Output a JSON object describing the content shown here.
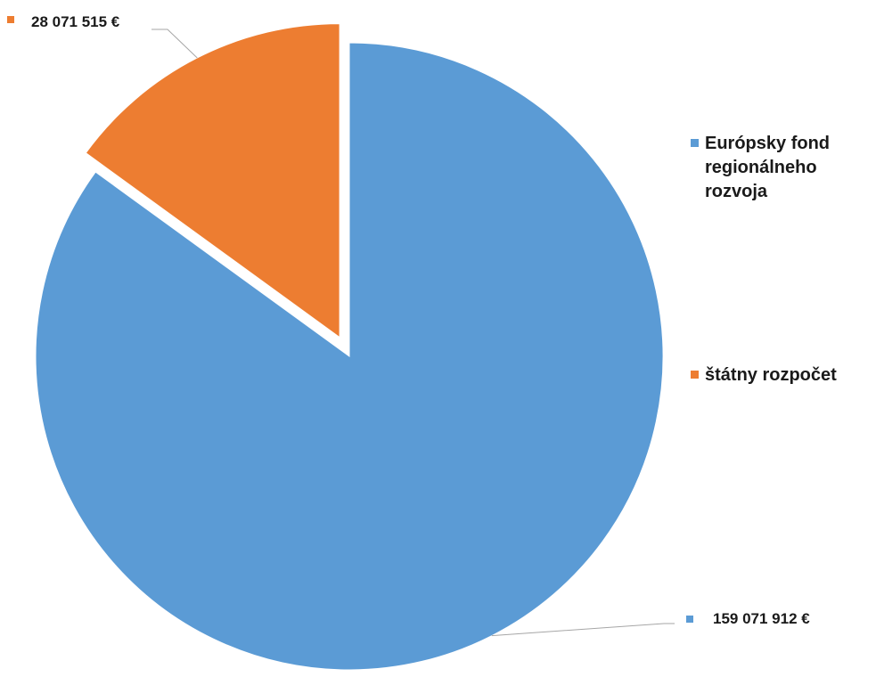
{
  "chart_data": {
    "type": "pie",
    "title": "",
    "series": [
      {
        "name": "",
        "slices": [
          {
            "label": "Európsky fond regionálneho rozvoja",
            "value": 159071912,
            "value_label": "159 071 912 €",
            "color": "#5B9BD5",
            "exploded": false
          },
          {
            "label": "štátny rozpočet",
            "value": 28071515,
            "value_label": "28 071 515 €",
            "color": "#ED7D31",
            "exploded": true
          }
        ]
      }
    ],
    "legend_position": "right",
    "data_labels": "outside-with-leader-lines"
  }
}
